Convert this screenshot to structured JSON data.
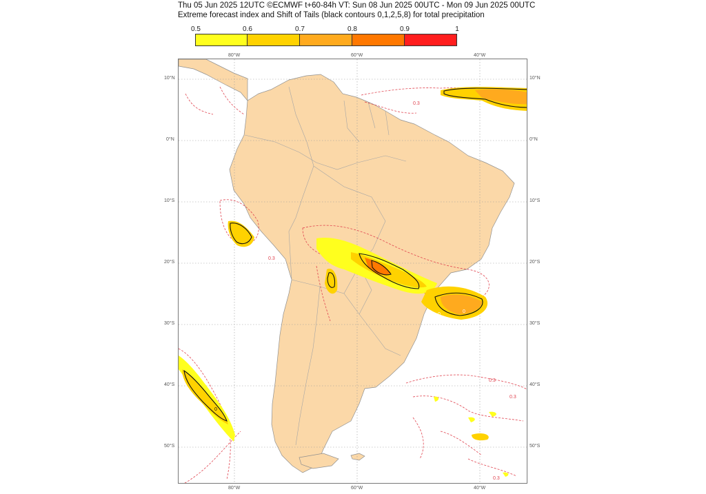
{
  "header": {
    "line1": "Thu 05 Jun 2025 12UTC ©ECMWF t+60-84h  VT: Sun 08 Jun 2025 00UTC - Mon 09 Jun 2025 00UTC",
    "line2": "Extreme forecast index and Shift of Tails (black contours 0,1,2,5,8) for total precipitation"
  },
  "colorbar": {
    "ticks": [
      "0.5",
      "0.6",
      "0.7",
      "0.8",
      "0.9",
      "1"
    ],
    "colors": [
      "#ffff1e",
      "#ffd200",
      "#ffaa1e",
      "#ff7800",
      "#ff1e1e"
    ]
  },
  "map": {
    "land_color": "#fbd8a8",
    "lon_labels": [
      "80°W",
      "60°W",
      "40°W"
    ],
    "lat_labels": [
      "10°N",
      "0°N",
      "10°S",
      "20°S",
      "30°S",
      "40°S",
      "50°S"
    ],
    "contour_labels": [
      "0.3",
      "0.3",
      "0.3",
      "0.3",
      "0.3",
      "0",
      "0",
      "0"
    ]
  }
}
